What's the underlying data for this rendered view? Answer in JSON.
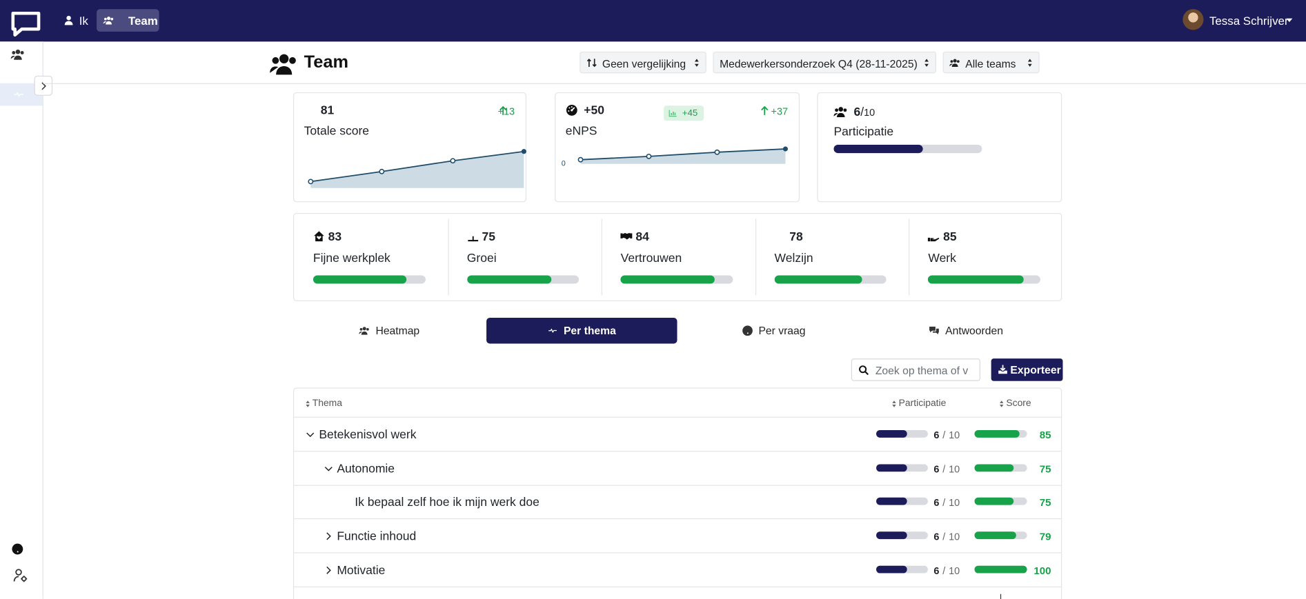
{
  "nav": {
    "items": [
      "Ik",
      "Team"
    ],
    "active": 1,
    "user": "Tessa Schrijver"
  },
  "header": {
    "title": "Team",
    "filters": [
      "Geen vergelijking",
      "Medewerkersonderzoek Q4 (28-11-2025)",
      "Alle teams"
    ]
  },
  "ratio_separator": "/",
  "summary": {
    "total": {
      "label": "Totale score",
      "value": 81,
      "change": "+13",
      "trend": {
        "values": [
          39,
          53,
          68,
          81
        ],
        "ylim": [
          30,
          95
        ]
      }
    },
    "enps": {
      "label": "eNPS",
      "value": "+50",
      "benchmark": "+45",
      "change": "+37",
      "trend": {
        "values": [
          14,
          25,
          39,
          50
        ],
        "ylim": [
          0,
          75
        ],
        "yticks": [
          0
        ]
      }
    },
    "participation": {
      "label": "Participatie",
      "respondents": 6,
      "total": 10
    }
  },
  "score_scale": [
    0,
    100
  ],
  "themes": [
    {
      "name": "Fijne werkplek",
      "score": 83
    },
    {
      "name": "Groei",
      "score": 75
    },
    {
      "name": "Vertrouwen",
      "score": 84
    },
    {
      "name": "Welzijn",
      "score": 78
    },
    {
      "name": "Werk",
      "score": 85
    }
  ],
  "tabs": {
    "items": [
      "Heatmap",
      "Per thema",
      "Per vraag",
      "Antwoorden"
    ],
    "active": 1
  },
  "toolbar": {
    "search_placeholder": "Zoek op thema of v",
    "export": "Exporteer"
  },
  "table": {
    "columns": [
      "Thema",
      "Participatie",
      "Score"
    ],
    "rows": [
      {
        "name": "Betekenisvol werk",
        "level": 0,
        "toggle": "open",
        "respondents": 6,
        "total": 10,
        "score": 85
      },
      {
        "name": "Autonomie",
        "level": 1,
        "toggle": "open",
        "respondents": 6,
        "total": 10,
        "score": 75
      },
      {
        "name": "Ik bepaal zelf hoe ik mijn werk doe",
        "level": 2,
        "respondents": 6,
        "total": 10,
        "score": 75
      },
      {
        "name": "Functie inhoud",
        "level": 1,
        "toggle": "closed",
        "respondents": 6,
        "total": 10,
        "score": 79
      },
      {
        "name": "Motivatie",
        "level": 1,
        "toggle": "closed",
        "respondents": 6,
        "total": 10,
        "score": 100
      }
    ]
  }
}
